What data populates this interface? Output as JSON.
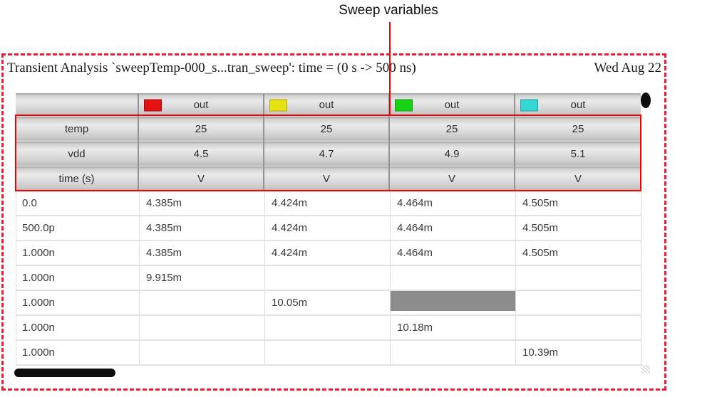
{
  "annotation": {
    "label": "Sweep variables",
    "pointer_color": "#f00000",
    "dashed_border_color": "#ed1c2e"
  },
  "header_bar": {
    "title": "Transient Analysis `sweepTemp-000_s...tran_sweep': time = (0 s -> 500 ns)",
    "date": "Wed Aug 22"
  },
  "table": {
    "signal_columns": [
      {
        "swatch_color": "#e31212",
        "label": "out"
      },
      {
        "swatch_color": "#e6e112",
        "label": "out"
      },
      {
        "swatch_color": "#16d316",
        "label": "out"
      },
      {
        "swatch_color": "#35d6d6",
        "label": "out"
      }
    ],
    "sweep_rows": [
      {
        "label": "temp",
        "values": [
          "25",
          "25",
          "25",
          "25"
        ]
      },
      {
        "label": "vdd",
        "values": [
          "4.5",
          "4.7",
          "4.9",
          "5.1"
        ]
      },
      {
        "label": "time (s)",
        "values": [
          "V",
          "V",
          "V",
          "V"
        ]
      }
    ],
    "data_rows": [
      {
        "label": "0.0",
        "values": [
          "4.385m",
          "4.424m",
          "4.464m",
          "4.505m"
        ]
      },
      {
        "label": "500.0p",
        "values": [
          "4.385m",
          "4.424m",
          "4.464m",
          "4.505m"
        ]
      },
      {
        "label": "1.000n",
        "values": [
          "4.385m",
          "4.424m",
          "4.464m",
          "4.505m"
        ]
      },
      {
        "label": "1.000n",
        "values": [
          "9.915m",
          "",
          "",
          ""
        ]
      },
      {
        "label": "1.000n",
        "values": [
          "",
          "10.05m",
          "",
          ""
        ]
      },
      {
        "label": "1.000n",
        "values": [
          "",
          "",
          "10.18m",
          ""
        ]
      },
      {
        "label": "1.000n",
        "values": [
          "",
          "",
          "",
          "10.39m"
        ]
      }
    ],
    "selected_cell": {
      "row": 4,
      "col": 2,
      "color": "#8c8c8c"
    }
  }
}
